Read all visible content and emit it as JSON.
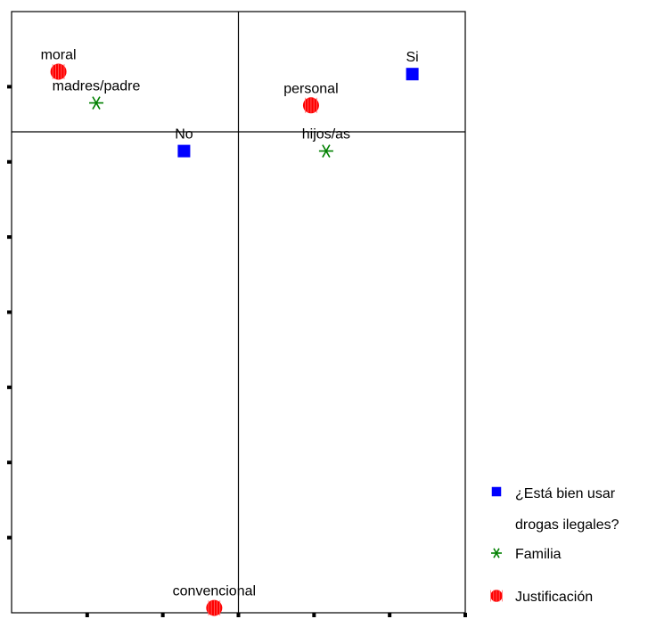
{
  "chart_data": {
    "type": "scatter",
    "title": "",
    "xlabel": "",
    "ylabel": "",
    "xlim": [
      -1.5,
      1.5
    ],
    "ylim": [
      -2.0,
      0.5
    ],
    "reference_lines": {
      "x": 0,
      "y": 0
    },
    "grid": false,
    "legend_position": "bottom-right",
    "series": [
      {
        "name": "¿Está bien usar drogas ilegales?",
        "name_lines": [
          "¿Está bien usar",
          "drogas ilegales?"
        ],
        "marker": "square",
        "color": "#0000ff",
        "points": [
          {
            "label": "Si",
            "x": 1.15,
            "y": 0.24
          },
          {
            "label": "No",
            "x": -0.36,
            "y": -0.08
          }
        ]
      },
      {
        "name": "Familia",
        "marker": "asterisk",
        "color": "#008000",
        "points": [
          {
            "label": "madres/padre",
            "x": -0.94,
            "y": 0.12
          },
          {
            "label": "hijos/as",
            "x": 0.58,
            "y": -0.08
          }
        ]
      },
      {
        "name": "Justificación",
        "marker": "circle",
        "color": "#ff0000",
        "points": [
          {
            "label": "moral",
            "x": -1.19,
            "y": 0.25
          },
          {
            "label": "personal",
            "x": 0.48,
            "y": 0.11
          },
          {
            "label": "convencional",
            "x": -0.16,
            "y": -1.98
          }
        ]
      }
    ]
  }
}
